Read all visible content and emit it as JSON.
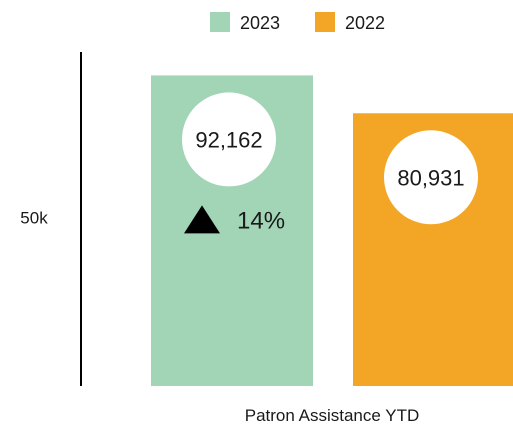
{
  "chart_data": {
    "type": "bar",
    "title": "",
    "xlabel": "Patron Assistance YTD",
    "ylabel": "",
    "y_tick_labels": [
      {
        "value": 50000,
        "label": "50k"
      }
    ],
    "ylim": [
      0,
      100000
    ],
    "categories": [
      "Patron Assistance YTD"
    ],
    "series": [
      {
        "name": "2023",
        "values": [
          92162
        ],
        "value_label": "92,162",
        "color": "#a2d5b6"
      },
      {
        "name": "2022",
        "values": [
          80931
        ],
        "value_label": "80,931",
        "color": "#f3a626"
      }
    ],
    "change": {
      "direction": "up",
      "label": "14%"
    },
    "legend_position": "top",
    "grid": false
  }
}
